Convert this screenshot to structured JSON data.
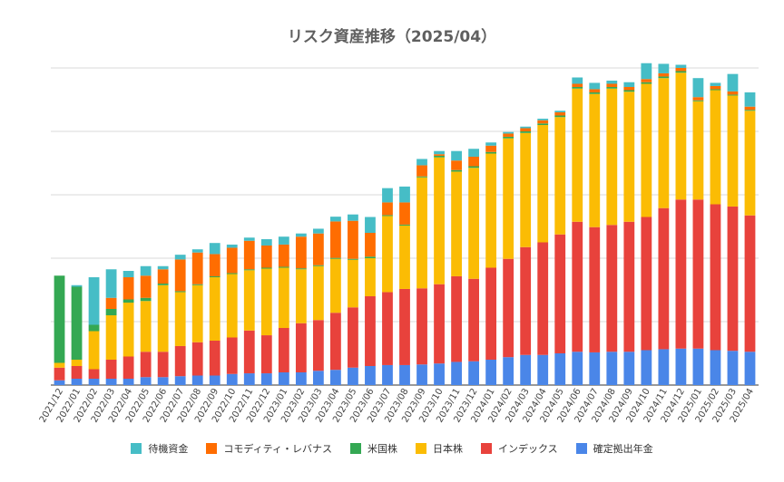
{
  "chart_data": {
    "type": "bar",
    "stacked": true,
    "title": "リスク資産推移（2025/04）",
    "xlabel": "",
    "ylabel": "",
    "ylim": [
      0,
      100
    ],
    "gridlines": 5,
    "grid": true,
    "legend_position": "bottom",
    "categories": [
      "2021/12",
      "2022/01",
      "2022/02",
      "2022/03",
      "2022/04",
      "2022/05",
      "2022/06",
      "2022/07",
      "2022/08",
      "2022/09",
      "2022/10",
      "2022/11",
      "2022/12",
      "2023/01",
      "2023/02",
      "2023/03",
      "2023/04",
      "2023/05",
      "2023/06",
      "2023/07",
      "2023/08",
      "2023/09",
      "2023/10",
      "2023/11",
      "2023/12",
      "2024/01",
      "2024/02",
      "2024/03",
      "2024/04",
      "2024/05",
      "2024/06",
      "2024/07",
      "2024/08",
      "2024/09",
      "2024/10",
      "2024/11",
      "2024/12",
      "2025/01",
      "2025/02",
      "2025/03",
      "2025/04"
    ],
    "series": [
      {
        "name": "確定拠出年金",
        "color": "#4a86e8",
        "values": [
          1.5,
          2,
          2,
          2,
          2,
          2.5,
          2.5,
          2.8,
          3,
          3,
          3.5,
          3.7,
          3.7,
          4,
          4,
          4.5,
          4.8,
          5.5,
          6,
          6.3,
          6.3,
          6.5,
          6.8,
          7.3,
          7.5,
          8,
          8.8,
          9.5,
          9.5,
          10,
          10.5,
          10.3,
          10.5,
          10.5,
          11,
          11.3,
          11.5,
          11.5,
          11,
          10.8,
          10.5
        ]
      },
      {
        "name": "インデックス",
        "color": "#e8423c",
        "values": [
          4,
          4,
          3,
          6,
          7,
          8,
          8,
          9.5,
          10.5,
          11,
          11.5,
          13.5,
          12,
          14,
          15.5,
          16,
          18,
          19,
          22,
          23,
          24,
          24,
          25,
          27,
          26,
          29,
          31,
          34,
          35.5,
          37.5,
          41,
          39.5,
          40,
          41,
          42,
          44.5,
          47,
          47,
          46,
          45.5,
          43
        ]
      },
      {
        "name": "日本株",
        "color": "#fbbc04",
        "values": [
          1.5,
          2,
          12,
          14,
          17,
          16,
          21,
          17,
          18,
          20,
          20,
          19,
          21,
          19,
          17,
          17,
          17,
          15,
          12,
          24,
          20,
          35,
          40,
          33,
          35,
          36,
          38,
          36,
          37,
          37,
          42,
          42,
          43,
          41,
          42,
          41,
          40,
          31,
          36,
          35,
          33
        ]
      },
      {
        "name": "米国株",
        "color": "#34a853",
        "values": [
          27.5,
          23,
          2,
          2,
          1,
          1,
          0.5,
          0.3,
          0.3,
          0.3,
          0.3,
          0.3,
          0.3,
          0.3,
          0.3,
          0.3,
          0.3,
          0.3,
          0.5,
          0.3,
          0.3,
          0.3,
          0.5,
          0.5,
          0.5,
          0.5,
          0.5,
          0.5,
          0.5,
          0.5,
          0.5,
          0.5,
          0.5,
          0.5,
          0.5,
          0.5,
          0.5,
          0.3,
          0.3,
          0.3,
          0.3
        ]
      },
      {
        "name": "コモディティ・レバナス",
        "color": "#ff6d01",
        "values": [
          0,
          0,
          0,
          3.5,
          7,
          7,
          4.5,
          10,
          10,
          7,
          8,
          9,
          7,
          7,
          10,
          10,
          11.5,
          12,
          7.5,
          4,
          7,
          3.5,
          0.5,
          3,
          3,
          2,
          1,
          1,
          1,
          1,
          1,
          1,
          1,
          1,
          1,
          1,
          1,
          1,
          1,
          1,
          1
        ]
      },
      {
        "name": "待機資金",
        "color": "#46bdc6",
        "values": [
          0,
          0.5,
          15,
          9,
          2,
          3,
          1,
          1.5,
          1,
          3.5,
          1,
          1,
          2,
          2.5,
          1,
          1.5,
          1.5,
          2,
          5,
          4.5,
          5,
          2,
          1,
          3,
          2.5,
          1,
          0.5,
          0.5,
          0.5,
          0.5,
          2,
          2,
          1,
          1.5,
          5,
          3,
          1,
          6,
          1,
          5.5,
          4.5
        ]
      }
    ]
  }
}
